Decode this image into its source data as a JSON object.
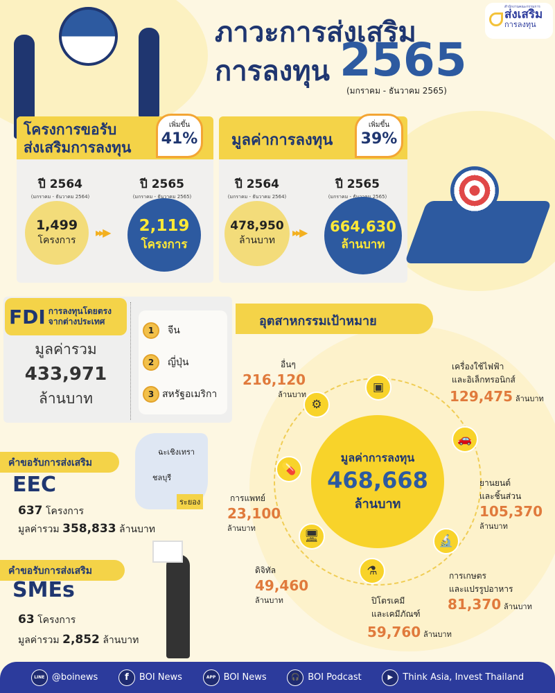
{
  "logo": {
    "small": "สำนักงานคณะกรรมการ",
    "line1": "ส่งเสริม",
    "line2": "การลงทุน"
  },
  "title": {
    "line1": "ภาวะการส่งเสริม",
    "line2": "การลงทุน",
    "year": "2565",
    "period": "(มกราคม - ธันวาคม 2565)"
  },
  "projects": {
    "title1": "โครงการขอรับ",
    "title2": "ส่งเสริมการลงทุน",
    "increase_label": "เพิ่มขึ้น",
    "increase": "41%",
    "prev": {
      "year": "ปี 2564",
      "period": "(มกราคม - ธันวาคม 2564)",
      "value": "1,499",
      "unit": "โครงการ"
    },
    "curr": {
      "year": "ปี 2565",
      "period": "(มกราคม - ธันวาคม 2565)",
      "value": "2,119",
      "unit": "โครงการ"
    }
  },
  "investment": {
    "title": "มูลค่าการลงทุน",
    "increase_label": "เพิ่มขึ้น",
    "increase": "39%",
    "prev": {
      "year": "ปี 2564",
      "period": "(มกราคม - ธันวาคม 2564)",
      "value": "478,950",
      "unit": "ล้านบาท"
    },
    "curr": {
      "year": "ปี 2565",
      "period": "(มกราคม - ธันวาคม 2565)",
      "value": "664,630",
      "unit": "ล้านบาท"
    }
  },
  "fdi": {
    "tag": "FDI",
    "desc1": "การลงทุนโดยตรง",
    "desc2": "จากต่างประเทศ",
    "total_label": "มูลค่ารวม",
    "total": "433,971",
    "unit": "ล้านบาท",
    "ranking": [
      {
        "rank": "1",
        "country": "จีน"
      },
      {
        "rank": "2",
        "country": "ญี่ปุ่น"
      },
      {
        "rank": "3",
        "country": "สหรัฐอเมริกา"
      }
    ]
  },
  "target": {
    "title": "อุตสาหกรรมเป้าหมาย",
    "center_label": "มูลค่าการลงทุน",
    "center_value": "468,668",
    "center_unit": "ล้านบาท",
    "items": [
      {
        "name": "อื่นๆ",
        "value": "216,120",
        "unit": "ล้านบาท",
        "icon": "gear-icon"
      },
      {
        "name": "เครื่องใช้ไฟฟ้า",
        "name2": "และอิเล็กทรอนิกส์",
        "value": "129,475",
        "unit": "ล้านบาท",
        "icon": "chip-icon"
      },
      {
        "name": "ยานยนต์",
        "name2": "และชิ้นส่วน",
        "value": "105,370",
        "unit": "ล้านบาท",
        "icon": "car-icon"
      },
      {
        "name": "การเกษตร",
        "name2": "และแปรรูปอาหาร",
        "value": "81,370",
        "unit": "ล้านบาท",
        "icon": "microscope-icon"
      },
      {
        "name": "ปิโตรเคมี",
        "name2": "และเคมีภัณฑ์",
        "value": "59,760",
        "unit": "ล้านบาท",
        "icon": "flask-icon"
      },
      {
        "name": "ดิจิทัล",
        "value": "49,460",
        "unit": "ล้านบาท",
        "icon": "computer-icon"
      },
      {
        "name": "การแพทย์",
        "value": "23,100",
        "unit": "ล้านบาท",
        "icon": "medicine-icon"
      }
    ]
  },
  "eec": {
    "label": "คำขอรับการส่งเสริม",
    "name": "EEC",
    "projects": "637",
    "projects_unit": "โครงการ",
    "value_label": "มูลค่ารวม",
    "value": "358,833",
    "value_unit": "ล้านบาท",
    "provinces": [
      "ฉะเชิงเทรา",
      "ชลบุรี",
      "ระยอง"
    ]
  },
  "smes": {
    "label": "คำขอรับการส่งเสริม",
    "name": "SMEs",
    "projects": "63",
    "projects_unit": "โครงการ",
    "value_label": "มูลค่ารวม",
    "value": "2,852",
    "value_unit": "ล้านบาท"
  },
  "footer": [
    {
      "icon": "line-icon",
      "glyph": "LINE",
      "label": "@boinews"
    },
    {
      "icon": "facebook-icon",
      "glyph": "f",
      "label": "BOI News"
    },
    {
      "icon": "app-icon",
      "glyph": "APP",
      "label": "BOI News"
    },
    {
      "icon": "podcast-icon",
      "glyph": "🎧",
      "label": "BOI Podcast"
    },
    {
      "icon": "youtube-icon",
      "glyph": "▶",
      "label": "Think Asia, Invest Thailand"
    }
  ],
  "colors": {
    "navy": "#1f3670",
    "blue": "#2d5aa0",
    "yellow": "#f4d348",
    "orange": "#e07a3c",
    "footer": "#2c3b9c"
  }
}
